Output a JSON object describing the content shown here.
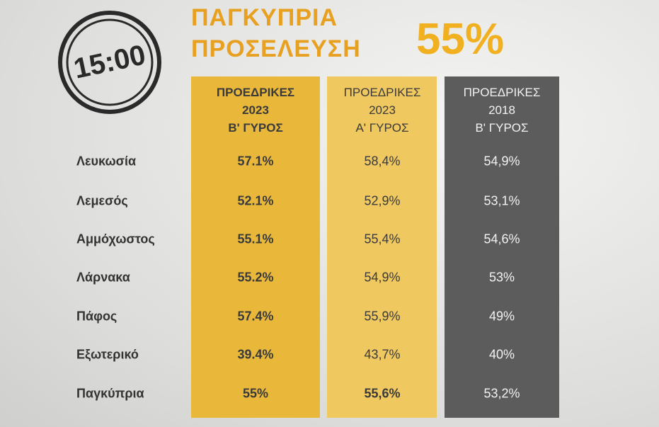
{
  "stamp": "15:00",
  "title": [
    "ΠΑΓΚΥΠΡΙΑ",
    "ΠΡΟΣΕΛΕΥΣΗ"
  ],
  "headline": "55%",
  "table": {
    "columns": [
      [
        "ΠΡΟΕΔΡΙΚΕΣ",
        "2023",
        "Β' ΓΥΡΟΣ"
      ],
      [
        "ΠΡΟΕΔΡΙΚΕΣ",
        "2023",
        "Α' ΓΥΡΟΣ"
      ],
      [
        "ΠΡΟΕΔΡΙΚΕΣ",
        "2018",
        "Β' ΓΥΡΟΣ"
      ]
    ],
    "rows": [
      [
        "Λευκωσία",
        "57.1%",
        "58,4%",
        "54,9%"
      ],
      [
        "Λεμεσός",
        "52.1%",
        "52,9%",
        "53,1%"
      ],
      [
        "Αμμόχωστος",
        "55.1%",
        "55,4%",
        "54,6%"
      ],
      [
        "Λάρνακα",
        "55.2%",
        "54,9%",
        "53%"
      ],
      [
        "Πάφος",
        "57.4%",
        "55,9%",
        "49%"
      ],
      [
        "Εξωτερικό",
        "39.4%",
        "43,7%",
        "40%"
      ],
      [
        "Παγκύπρια",
        "55%",
        "55,6%",
        "53,2%"
      ]
    ]
  }
}
